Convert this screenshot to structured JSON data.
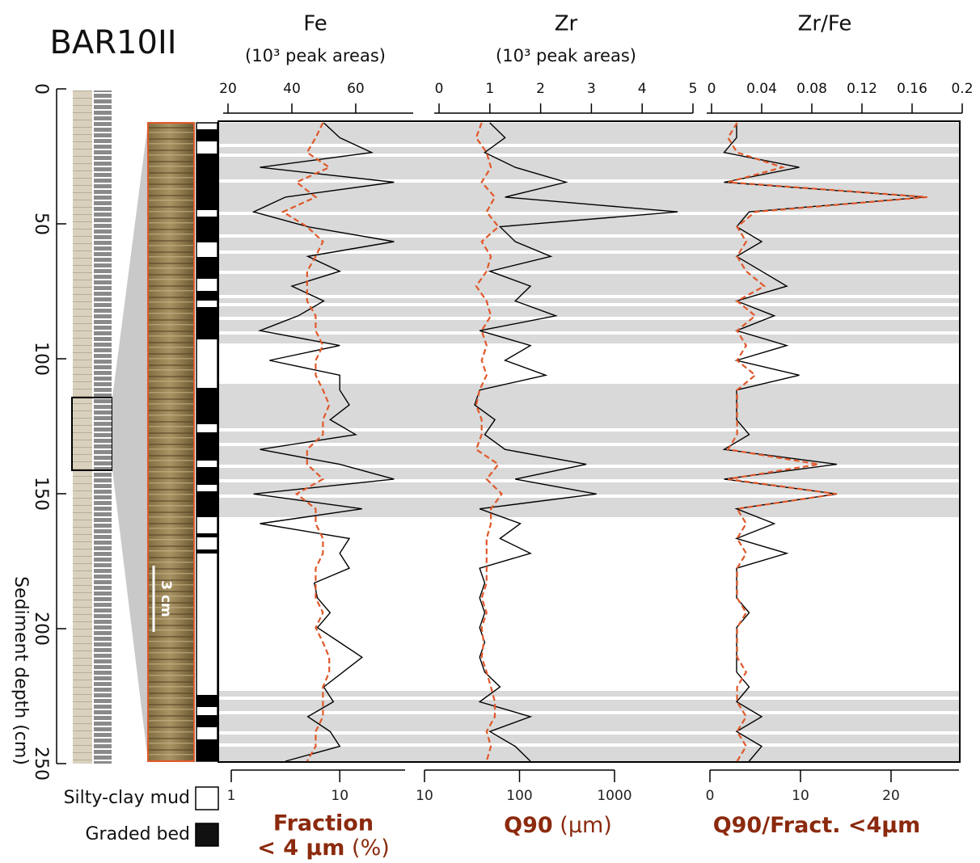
{
  "title": "BAR10II",
  "depth_axis": {
    "label": "Sediment depth (cm)",
    "ylim": [
      0,
      250
    ],
    "yticks": [
      0,
      50,
      100,
      150,
      200,
      250
    ]
  },
  "scale_bar": "3 cm",
  "legend": [
    {
      "label": "Silty-clay mud",
      "color": "#ffffff"
    },
    {
      "label": "Graded bed",
      "color": "#111111"
    }
  ],
  "chart_data": [
    {
      "type": "line",
      "title": "Fe",
      "subtitle": "(10³ peak areas)",
      "categories": [
        null,
        null,
        null,
        null,
        null,
        null,
        null,
        null,
        null,
        null,
        null,
        null,
        null,
        null,
        null,
        null,
        null,
        null,
        null,
        null,
        null,
        null,
        null,
        null,
        null,
        null,
        null,
        null,
        null,
        null,
        null,
        null,
        null,
        null,
        null,
        null,
        null,
        null,
        null,
        null,
        null,
        null,
        null,
        null
      ],
      "xlim": [
        20,
        78
      ],
      "xticks": [
        20,
        40,
        60
      ],
      "x2lim": [
        1,
        40
      ],
      "x2ticks": [
        1,
        10
      ],
      "x2log": true,
      "x2label": [
        "Fraction",
        "< 4 µm",
        "(%)"
      ],
      "series": [
        {
          "color": "#000000",
          "values": [
            50,
            55,
            65,
            30,
            72,
            38,
            28,
            45,
            72,
            45,
            55,
            40,
            50,
            42,
            30,
            55,
            33,
            55,
            55,
            58,
            52,
            60,
            30,
            55,
            72,
            28,
            62,
            30,
            58,
            55,
            58,
            47,
            48,
            52,
            48,
            55,
            62,
            56,
            50,
            53,
            45,
            52,
            55,
            38
          ]
        },
        {
          "color": "#e0582a",
          "dashed": true,
          "axis": "x2",
          "values": [
            7,
            6,
            5,
            8,
            4,
            6,
            3,
            5,
            7,
            6,
            5,
            5,
            5,
            6,
            6,
            7,
            6,
            6,
            7,
            8,
            7,
            7,
            5,
            5,
            7,
            4,
            6,
            6,
            7,
            7,
            6,
            6,
            6,
            7,
            6,
            7,
            8,
            8,
            7,
            7,
            7,
            6,
            6,
            5
          ]
        }
      ]
    },
    {
      "type": "line",
      "title": "Zr",
      "subtitle": "(10³ peak areas)",
      "categories": [
        null,
        null,
        null,
        null,
        null,
        null,
        null,
        null,
        null,
        null,
        null,
        null,
        null,
        null,
        null,
        null,
        null,
        null,
        null,
        null,
        null,
        null,
        null,
        null,
        null,
        null,
        null,
        null,
        null,
        null,
        null,
        null,
        null,
        null,
        null,
        null,
        null,
        null,
        null,
        null,
        null,
        null,
        null,
        null
      ],
      "xlim": [
        0,
        5
      ],
      "xticks": [
        0,
        1,
        2,
        3,
        4,
        5
      ],
      "x2lim": [
        10,
        1000
      ],
      "x2ticks": [
        10,
        100,
        1000
      ],
      "x2log": true,
      "x2label": [
        "Q90",
        "(µm)"
      ],
      "series": [
        {
          "color": "#000000",
          "values": [
            1,
            1.3,
            0.9,
            1.5,
            2.5,
            1.3,
            4.7,
            1.2,
            1.5,
            2.2,
            1,
            1.8,
            1.5,
            2.3,
            0.8,
            1.8,
            1.3,
            2.1,
            0.8,
            0.7,
            1.1,
            0.9,
            1.3,
            2.9,
            1.5,
            3.1,
            0.8,
            1.6,
            1.2,
            1.8,
            0.8,
            0.9,
            0.8,
            0.9,
            0.8,
            0.9,
            0.8,
            0.9,
            1.2,
            0.8,
            1.8,
            1,
            1.5,
            1.8
          ]
        },
        {
          "color": "#e0582a",
          "dashed": true,
          "axis": "x2",
          "values": [
            40,
            35,
            45,
            50,
            40,
            55,
            45,
            60,
            40,
            50,
            45,
            35,
            45,
            50,
            40,
            45,
            40,
            45,
            38,
            35,
            40,
            40,
            35,
            60,
            45,
            65,
            50,
            50,
            45,
            45,
            45,
            45,
            40,
            45,
            40,
            42,
            40,
            45,
            50,
            55,
            55,
            45,
            50,
            45
          ]
        }
      ]
    },
    {
      "type": "line",
      "title": "Zr/Fe",
      "categories": [
        null,
        null,
        null,
        null,
        null,
        null,
        null,
        null,
        null,
        null,
        null,
        null,
        null,
        null,
        null,
        null,
        null,
        null,
        null,
        null,
        null,
        null,
        null,
        null,
        null,
        null,
        null,
        null,
        null,
        null,
        null,
        null,
        null,
        null,
        null,
        null,
        null,
        null,
        null,
        null,
        null,
        null,
        null,
        null
      ],
      "xlim": [
        0,
        0.2
      ],
      "xticks": [
        0,
        0.04,
        0.08,
        0.12,
        0.16,
        0.2
      ],
      "x2lim": [
        0,
        27.5
      ],
      "x2ticks": [
        0,
        10,
        20
      ],
      "x2log": false,
      "x2label": [
        "Q90/Fract. <4µm"
      ],
      "series": [
        {
          "color": "#000000",
          "values": [
            0.02,
            0.02,
            0.01,
            0.07,
            0.01,
            0.17,
            0.03,
            0.02,
            0.04,
            0.02,
            0.04,
            0.06,
            0.02,
            0.05,
            0.02,
            0.06,
            0.02,
            0.07,
            0.02,
            0.02,
            0.02,
            0.03,
            0.01,
            0.1,
            0.01,
            0.1,
            0.02,
            0.05,
            0.02,
            0.06,
            0.02,
            0.02,
            0.02,
            0.03,
            0.02,
            0.02,
            0.02,
            0.02,
            0.03,
            0.02,
            0.04,
            0.02,
            0.04,
            0.03
          ]
        },
        {
          "color": "#e0582a",
          "dashed": true,
          "axis": "x2",
          "values": [
            3,
            2,
            3,
            8,
            2,
            24,
            5,
            3,
            4,
            3,
            4,
            6,
            3,
            5,
            3,
            4,
            3,
            5,
            3,
            3,
            3,
            3,
            2,
            12,
            2,
            14,
            3,
            4,
            3,
            4,
            3,
            3,
            3,
            4,
            3,
            3,
            3,
            4,
            3,
            3,
            4,
            3,
            4,
            3
          ]
        }
      ]
    }
  ]
}
